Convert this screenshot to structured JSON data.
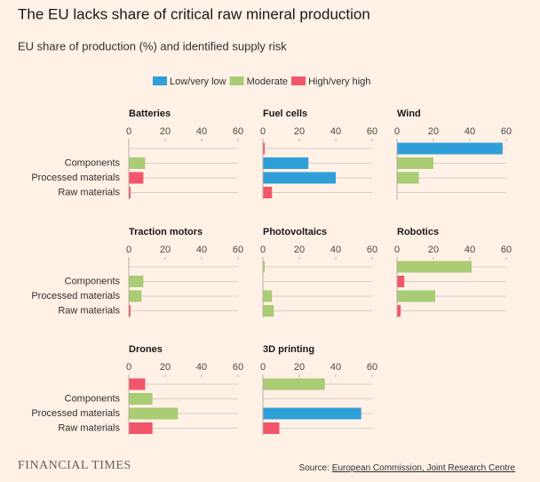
{
  "chart_data": {
    "type": "bar",
    "title": "The EU lacks share of critical raw mineral production",
    "subtitle": "EU share of production (%) and identified supply risk",
    "legend": [
      {
        "name": "Low/very low",
        "color": "#2f9fd8"
      },
      {
        "name": "Moderate",
        "color": "#a9cc74"
      },
      {
        "name": "High/very high",
        "color": "#f2566a"
      }
    ],
    "categories": [
      null,
      "Components",
      "Processed materials",
      "Raw materials"
    ],
    "xlim": [
      0,
      60
    ],
    "xticks": [
      0,
      20,
      40,
      60
    ],
    "panels": [
      {
        "title": "Batteries",
        "values": [
          null,
          9,
          8,
          1
        ],
        "risk": [
          null,
          "Moderate",
          "High/very high",
          "High/very high"
        ]
      },
      {
        "title": "Fuel cells",
        "values": [
          1,
          25,
          40,
          5
        ],
        "risk": [
          "High/very high",
          "Low/very low",
          "Low/very low",
          "High/very high"
        ]
      },
      {
        "title": "Wind",
        "values": [
          58,
          20,
          12,
          null
        ],
        "risk": [
          "Low/very low",
          "Moderate",
          "Moderate",
          null
        ]
      },
      {
        "title": "Traction motors",
        "values": [
          null,
          8,
          7,
          1
        ],
        "risk": [
          null,
          "Moderate",
          "Moderate",
          "High/very high"
        ]
      },
      {
        "title": "Photovoltaics",
        "values": [
          1,
          null,
          5,
          6
        ],
        "risk": [
          "Moderate",
          null,
          "Moderate",
          "Moderate"
        ]
      },
      {
        "title": "Robotics",
        "values": [
          41,
          4,
          21,
          2
        ],
        "risk": [
          "Moderate",
          "High/very high",
          "Moderate",
          "High/very high"
        ]
      },
      {
        "title": "Drones",
        "values": [
          9,
          13,
          27,
          13
        ],
        "risk": [
          "High/very high",
          "Moderate",
          "Moderate",
          "High/very high"
        ]
      },
      {
        "title": "3D printing",
        "values": [
          34,
          null,
          54,
          9
        ],
        "risk": [
          "Moderate",
          null,
          "Low/very low",
          "High/very high"
        ]
      }
    ]
  },
  "footer": {
    "brand": "FINANCIAL TIMES",
    "source_label": "Source:",
    "source": "European Commission, Joint Research Centre"
  }
}
